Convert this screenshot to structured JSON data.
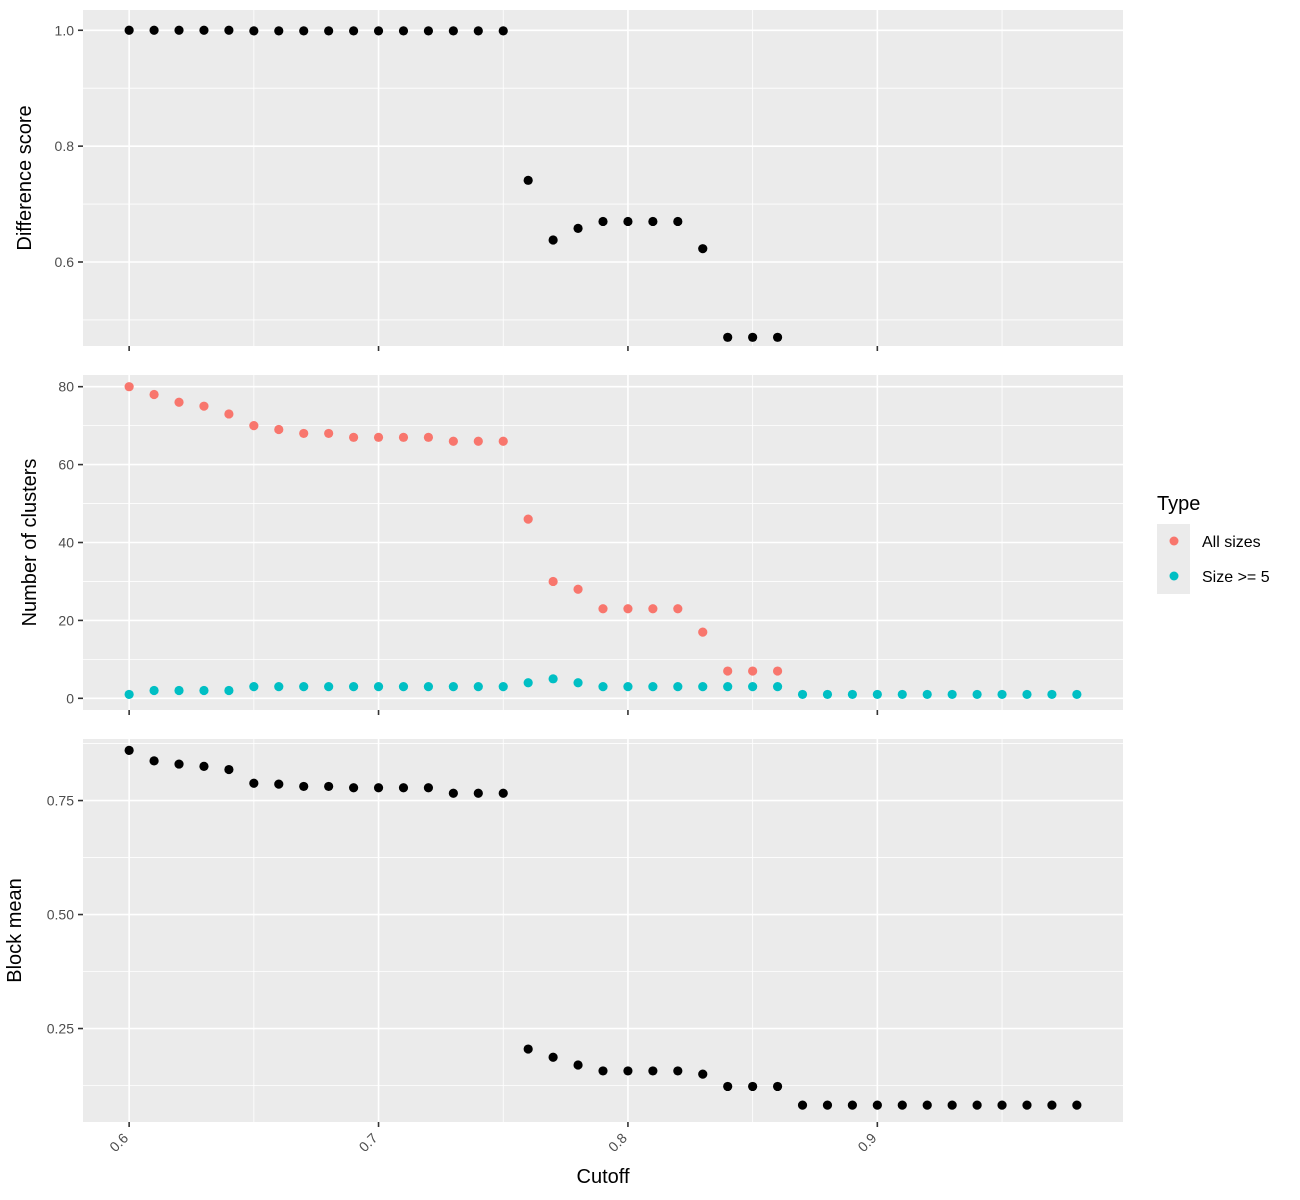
{
  "chart_data": [
    {
      "type": "scatter",
      "ylabel": "Difference score",
      "ylim": [
        0.455,
        1.035
      ],
      "yticks": [
        0.6,
        0.8,
        1.0
      ],
      "ytick_labels": [
        "0.6",
        "0.8",
        "1.0"
      ],
      "xlim": [
        0.5815,
        0.9985
      ],
      "xticks": [
        0.6,
        0.7,
        0.8,
        0.9
      ],
      "grid": true,
      "series": [
        {
          "color": "#000000",
          "x": [
            0.6,
            0.61,
            0.62,
            0.63,
            0.64,
            0.65,
            0.66,
            0.67,
            0.68,
            0.69,
            0.7,
            0.71,
            0.72,
            0.73,
            0.74,
            0.75,
            0.76,
            0.77,
            0.78,
            0.79,
            0.8,
            0.81,
            0.82,
            0.83,
            0.84,
            0.85,
            0.86
          ],
          "values": [
            1.0,
            1.0,
            1.0,
            1.0,
            1.0,
            0.999,
            0.999,
            0.999,
            0.999,
            0.999,
            0.999,
            0.999,
            0.999,
            0.999,
            0.999,
            0.999,
            0.741,
            0.638,
            0.658,
            0.67,
            0.67,
            0.67,
            0.67,
            0.623,
            0.47,
            0.47,
            0.47
          ]
        }
      ]
    },
    {
      "type": "scatter",
      "ylabel": "Number of clusters",
      "ylim": [
        -3,
        83
      ],
      "yticks": [
        0,
        20,
        40,
        60,
        80
      ],
      "ytick_labels": [
        "0",
        "20",
        "40",
        "60",
        "80"
      ],
      "xlim": [
        0.5815,
        0.9985
      ],
      "xticks": [
        0.6,
        0.7,
        0.8,
        0.9
      ],
      "grid": true,
      "series": [
        {
          "name": "All sizes",
          "color": "#F8766D",
          "x": [
            0.6,
            0.61,
            0.62,
            0.63,
            0.64,
            0.65,
            0.66,
            0.67,
            0.68,
            0.69,
            0.7,
            0.71,
            0.72,
            0.73,
            0.74,
            0.75,
            0.76,
            0.77,
            0.78,
            0.79,
            0.8,
            0.81,
            0.82,
            0.83,
            0.84,
            0.85,
            0.86
          ],
          "values": [
            80,
            78,
            76,
            75,
            73,
            70,
            69,
            68,
            68,
            67,
            67,
            67,
            67,
            66,
            66,
            66,
            46,
            30,
            28,
            23,
            23,
            23,
            23,
            17,
            7,
            7,
            7
          ]
        },
        {
          "name": "Size >= 5",
          "color": "#00BFC4",
          "x": [
            0.6,
            0.61,
            0.62,
            0.63,
            0.64,
            0.65,
            0.66,
            0.67,
            0.68,
            0.69,
            0.7,
            0.71,
            0.72,
            0.73,
            0.74,
            0.75,
            0.76,
            0.77,
            0.78,
            0.79,
            0.8,
            0.81,
            0.82,
            0.83,
            0.84,
            0.85,
            0.86,
            0.87,
            0.88,
            0.89,
            0.9,
            0.91,
            0.92,
            0.93,
            0.94,
            0.95,
            0.96,
            0.97,
            0.98
          ],
          "values": [
            1,
            2,
            2,
            2,
            2,
            3,
            3,
            3,
            3,
            3,
            3,
            3,
            3,
            3,
            3,
            3,
            4,
            5,
            4,
            3,
            3,
            3,
            3,
            3,
            3,
            3,
            3,
            1,
            1,
            1,
            1,
            1,
            1,
            1,
            1,
            1,
            1,
            1,
            1
          ]
        }
      ]
    },
    {
      "type": "scatter",
      "ylabel": "Block mean",
      "xlabel": "Cutoff",
      "ylim": [
        0.045,
        0.885
      ],
      "yticks": [
        0.25,
        0.5,
        0.75
      ],
      "ytick_labels": [
        "0.25",
        "0.50",
        "0.75"
      ],
      "xlim": [
        0.5815,
        0.9985
      ],
      "xticks": [
        0.6,
        0.7,
        0.8,
        0.9
      ],
      "xtick_labels": [
        "0.6",
        "0.7",
        "0.8",
        "0.9"
      ],
      "grid": true,
      "series": [
        {
          "color": "#000000",
          "x": [
            0.6,
            0.61,
            0.62,
            0.63,
            0.64,
            0.65,
            0.66,
            0.67,
            0.68,
            0.69,
            0.7,
            0.71,
            0.72,
            0.73,
            0.74,
            0.75,
            0.76,
            0.77,
            0.78,
            0.79,
            0.8,
            0.81,
            0.82,
            0.83,
            0.84,
            0.85,
            0.86,
            0.87,
            0.88,
            0.89,
            0.9,
            0.91,
            0.92,
            0.93,
            0.94,
            0.95,
            0.96,
            0.97,
            0.98
          ],
          "values": [
            0.86,
            0.837,
            0.83,
            0.825,
            0.818,
            0.788,
            0.786,
            0.781,
            0.781,
            0.778,
            0.778,
            0.778,
            0.778,
            0.766,
            0.766,
            0.766,
            0.205,
            0.187,
            0.17,
            0.157,
            0.157,
            0.157,
            0.157,
            0.15,
            0.123,
            0.123,
            0.123,
            0.082,
            0.082,
            0.082,
            0.082,
            0.082,
            0.082,
            0.082,
            0.082,
            0.082,
            0.082,
            0.082,
            0.082
          ]
        }
      ]
    }
  ],
  "legend": {
    "title": "Type",
    "items": [
      {
        "label": "All sizes",
        "color": "#F8766D"
      },
      {
        "label": "Size >= 5",
        "color": "#00BFC4"
      }
    ]
  }
}
